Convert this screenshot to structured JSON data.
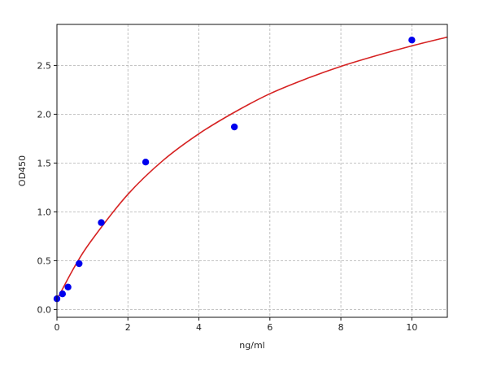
{
  "chart_data": {
    "type": "scatter",
    "title": "",
    "xlabel": "ng/ml",
    "ylabel": "OD450",
    "xlim": [
      0,
      11
    ],
    "ylim": [
      -0.08,
      2.92
    ],
    "xticks": [
      0,
      2,
      4,
      6,
      8,
      10
    ],
    "xtick_labels": [
      "0",
      "2",
      "4",
      "6",
      "8",
      "10"
    ],
    "yticks": [
      0.0,
      0.5,
      1.0,
      1.5,
      2.0,
      2.5
    ],
    "ytick_labels": [
      "0.0",
      "0.5",
      "1.0",
      "1.5",
      "2.0",
      "2.5"
    ],
    "grid": true,
    "series": [
      {
        "kind": "points",
        "color": "#0000ee",
        "x": [
          0,
          0.156,
          0.3125,
          0.625,
          1.25,
          2.5,
          5,
          10
        ],
        "y": [
          0.11,
          0.16,
          0.23,
          0.47,
          0.89,
          1.51,
          1.87,
          2.76
        ]
      },
      {
        "kind": "fit-line",
        "color": "#d62222",
        "x": [
          0,
          0.5,
          1,
          2,
          3,
          4,
          5,
          6,
          7,
          8,
          9,
          10,
          11
        ],
        "y": [
          0.1,
          0.44,
          0.72,
          1.18,
          1.53,
          1.8,
          2.02,
          2.21,
          2.36,
          2.49,
          2.6,
          2.7,
          2.79
        ]
      }
    ]
  }
}
